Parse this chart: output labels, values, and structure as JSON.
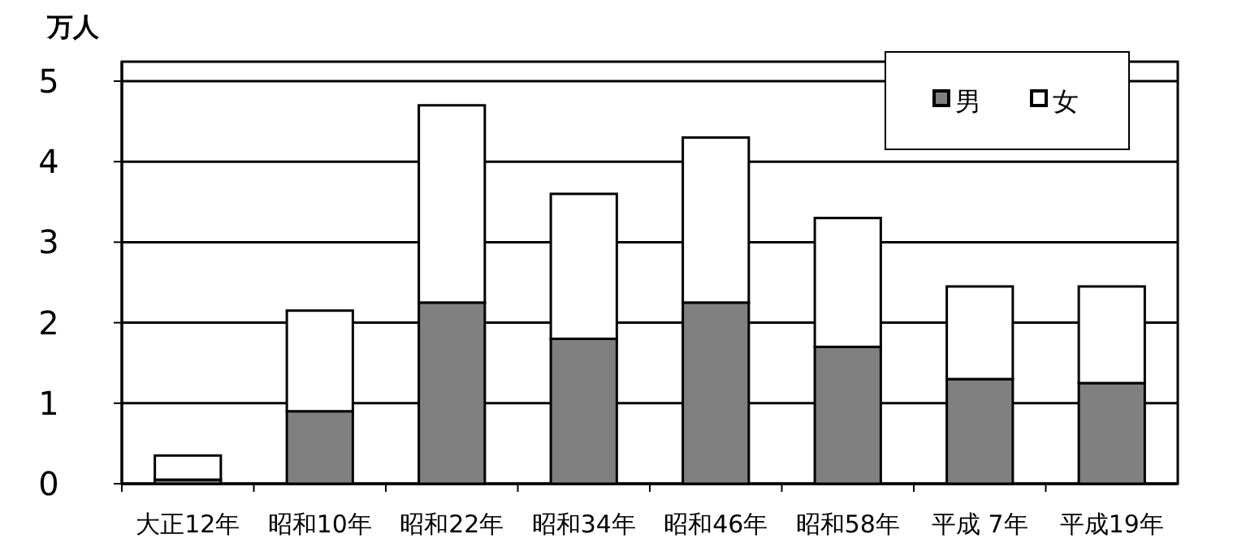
{
  "chart_data": {
    "type": "bar",
    "stacked": true,
    "ylabel": "万人",
    "categories": [
      "大正12年",
      "昭和10年",
      "昭和22年",
      "昭和34年",
      "昭和46年",
      "昭和58年",
      "平成 7年",
      "平成19年"
    ],
    "series": [
      {
        "name": "男",
        "color": "#808080",
        "values": [
          0.05,
          0.9,
          2.25,
          1.8,
          2.25,
          1.7,
          1.3,
          1.25
        ]
      },
      {
        "name": "女",
        "color": "#ffffff",
        "values": [
          0.3,
          1.25,
          2.45,
          1.8,
          2.05,
          1.6,
          1.15,
          1.2
        ]
      }
    ],
    "ylim": [
      0,
      5
    ],
    "yticks": [
      0,
      1,
      2,
      3,
      4,
      5
    ],
    "grid": "y",
    "legend": "top right"
  }
}
